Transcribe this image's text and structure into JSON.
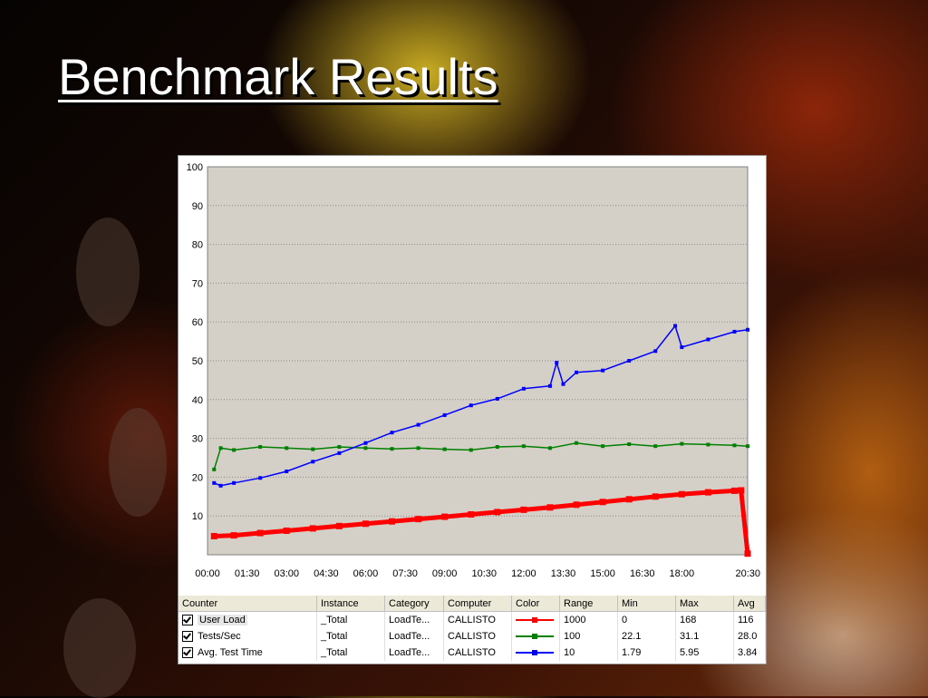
{
  "slide": {
    "title": "Benchmark Results"
  },
  "chart_data": {
    "type": "line",
    "title": "",
    "xlabel": "",
    "ylabel": "",
    "ylim": [
      0,
      100
    ],
    "yticks": [
      10,
      20,
      30,
      40,
      50,
      60,
      70,
      80,
      90,
      100
    ],
    "xlim": [
      "00:00",
      "20:30"
    ],
    "xticks": [
      "00:00",
      "01:30",
      "03:00",
      "04:30",
      "06:00",
      "07:30",
      "09:00",
      "10:30",
      "12:00",
      "13:30",
      "15:00",
      "16:30",
      "18:00",
      "20:30"
    ],
    "grid": "horizontal",
    "legend": "table-below",
    "series": [
      {
        "name": "User Load",
        "color": "#ff0000",
        "x": [
          "00:15",
          "01:00",
          "02:00",
          "03:00",
          "04:00",
          "05:00",
          "06:00",
          "07:00",
          "08:00",
          "09:00",
          "10:00",
          "11:00",
          "12:00",
          "13:00",
          "14:00",
          "15:00",
          "16:00",
          "17:00",
          "18:00",
          "19:00",
          "20:00",
          "20:15",
          "20:30"
        ],
        "values": [
          4.8,
          5,
          5.6,
          6.2,
          6.8,
          7.4,
          8,
          8.6,
          9.2,
          9.8,
          10.4,
          11,
          11.6,
          12.2,
          12.9,
          13.6,
          14.3,
          15,
          15.6,
          16.1,
          16.5,
          16.6,
          0.3
        ]
      },
      {
        "name": "Tests/Sec",
        "color": "#008000",
        "x": [
          "00:15",
          "00:30",
          "01:00",
          "02:00",
          "03:00",
          "04:00",
          "05:00",
          "06:00",
          "07:00",
          "08:00",
          "09:00",
          "10:00",
          "11:00",
          "12:00",
          "13:00",
          "14:00",
          "15:00",
          "16:00",
          "17:00",
          "18:00",
          "19:00",
          "20:00",
          "20:30"
        ],
        "values": [
          22,
          27.5,
          27,
          27.8,
          27.5,
          27.2,
          27.8,
          27.5,
          27.3,
          27.5,
          27.2,
          27,
          27.8,
          28,
          27.5,
          28.8,
          28,
          28.5,
          28,
          28.6,
          28.4,
          28.2,
          28
        ]
      },
      {
        "name": "Avg. Test Time",
        "color": "#0000ff",
        "x": [
          "00:15",
          "00:30",
          "01:00",
          "02:00",
          "03:00",
          "04:00",
          "05:00",
          "06:00",
          "07:00",
          "08:00",
          "09:00",
          "10:00",
          "11:00",
          "12:00",
          "13:00",
          "13:15",
          "13:30",
          "14:00",
          "15:00",
          "16:00",
          "17:00",
          "17:45",
          "18:00",
          "19:00",
          "20:00",
          "20:30"
        ],
        "values": [
          18.5,
          17.8,
          18.5,
          19.8,
          21.5,
          24,
          26.2,
          28.8,
          31.5,
          33.5,
          36,
          38.5,
          40.2,
          42.8,
          43.5,
          49.5,
          44,
          47,
          47.5,
          50,
          52.5,
          59,
          53.5,
          55.5,
          57.5,
          58
        ]
      }
    ]
  },
  "legend_table": {
    "headers": [
      "Counter",
      "Instance",
      "Category",
      "Computer",
      "Color",
      "Range",
      "Min",
      "Max",
      "Avg"
    ],
    "rows": [
      {
        "counter": "User Load",
        "instance": "_Total",
        "category": "LoadTe...",
        "computer": "CALLISTO",
        "range": "1000",
        "min": "0",
        "max": "168",
        "avg": "116"
      },
      {
        "counter": "Tests/Sec",
        "instance": "_Total",
        "category": "LoadTe...",
        "computer": "CALLISTO",
        "range": "100",
        "min": "22.1",
        "max": "31.1",
        "avg": "28.0"
      },
      {
        "counter": "Avg. Test Time",
        "instance": "_Total",
        "category": "LoadTe...",
        "computer": "CALLISTO",
        "range": "10",
        "min": "1.79",
        "max": "5.95",
        "avg": "3.84"
      }
    ]
  }
}
